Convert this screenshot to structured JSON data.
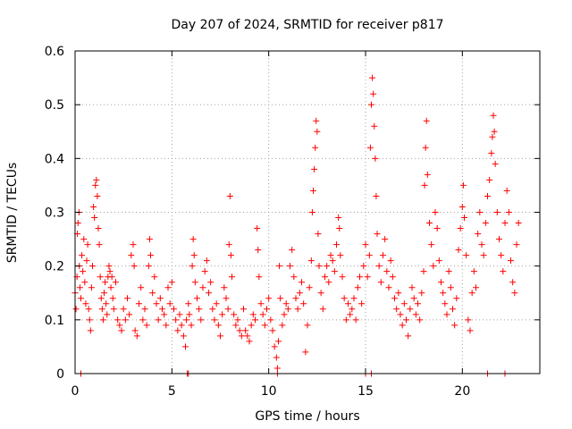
{
  "chart_data": {
    "type": "scatter",
    "title": "Day 207 of 2024, SRMTID for receiver p817",
    "xlabel": "GPS time / hours",
    "ylabel": "SRMTID / TECUs",
    "xlim": [
      0,
      24
    ],
    "ylim": [
      0,
      0.6
    ],
    "x_ticks": [
      0,
      5,
      10,
      15,
      20
    ],
    "x_tick_labels": [
      "0",
      "5",
      "10",
      "15",
      "20"
    ],
    "y_ticks": [
      0,
      0.1,
      0.2,
      0.3,
      0.4,
      0.5,
      0.6
    ],
    "y_tick_labels": [
      "0",
      "0.1",
      "0.2",
      "0.3",
      "0.4",
      "0.5",
      "0.6"
    ],
    "grid": true,
    "marker": "plus",
    "series": [
      {
        "name": "SRMTID",
        "color": "#ff0000",
        "points": [
          [
            0.0,
            0.15
          ],
          [
            0.05,
            0.12
          ],
          [
            0.1,
            0.18
          ],
          [
            0.12,
            0.26
          ],
          [
            0.15,
            0.28
          ],
          [
            0.2,
            0.3
          ],
          [
            0.22,
            0.2
          ],
          [
            0.25,
            0.16
          ],
          [
            0.3,
            0.14
          ],
          [
            0.35,
            0.22
          ],
          [
            0.4,
            0.19
          ],
          [
            0.45,
            0.25
          ],
          [
            0.5,
            0.17
          ],
          [
            0.55,
            0.13
          ],
          [
            0.6,
            0.21
          ],
          [
            0.65,
            0.24
          ],
          [
            0.7,
            0.12
          ],
          [
            0.75,
            0.1
          ],
          [
            0.8,
            0.08
          ],
          [
            0.85,
            0.16
          ],
          [
            0.9,
            0.2
          ],
          [
            0.95,
            0.31
          ],
          [
            1.0,
            0.29
          ],
          [
            1.05,
            0.35
          ],
          [
            1.1,
            0.36
          ],
          [
            1.15,
            0.33
          ],
          [
            1.2,
            0.27
          ],
          [
            1.25,
            0.24
          ],
          [
            1.3,
            0.18
          ],
          [
            1.35,
            0.14
          ],
          [
            1.4,
            0.12
          ],
          [
            1.45,
            0.1
          ],
          [
            1.5,
            0.15
          ],
          [
            1.55,
            0.17
          ],
          [
            1.6,
            0.13
          ],
          [
            1.65,
            0.11
          ],
          [
            1.7,
            0.18
          ],
          [
            1.75,
            0.2
          ],
          [
            1.8,
            0.19
          ],
          [
            1.85,
            0.16
          ],
          [
            1.9,
            0.18
          ],
          [
            1.95,
            0.14
          ],
          [
            2.0,
            0.12
          ],
          [
            2.1,
            0.17
          ],
          [
            2.2,
            0.1
          ],
          [
            2.3,
            0.09
          ],
          [
            2.4,
            0.08
          ],
          [
            2.5,
            0.12
          ],
          [
            2.6,
            0.1
          ],
          [
            2.7,
            0.14
          ],
          [
            2.8,
            0.11
          ],
          [
            2.9,
            0.22
          ],
          [
            3.0,
            0.24
          ],
          [
            3.05,
            0.2
          ],
          [
            3.1,
            0.08
          ],
          [
            3.2,
            0.07
          ],
          [
            3.3,
            0.13
          ],
          [
            3.4,
            0.16
          ],
          [
            3.5,
            0.1
          ],
          [
            3.6,
            0.12
          ],
          [
            3.7,
            0.09
          ],
          [
            3.8,
            0.2
          ],
          [
            3.85,
            0.25
          ],
          [
            3.9,
            0.22
          ],
          [
            4.0,
            0.15
          ],
          [
            4.1,
            0.18
          ],
          [
            4.2,
            0.13
          ],
          [
            4.3,
            0.1
          ],
          [
            4.4,
            0.14
          ],
          [
            4.5,
            0.12
          ],
          [
            4.6,
            0.11
          ],
          [
            4.7,
            0.09
          ],
          [
            4.8,
            0.16
          ],
          [
            4.9,
            0.13
          ],
          [
            5.0,
            0.17
          ],
          [
            5.1,
            0.12
          ],
          [
            5.2,
            0.1
          ],
          [
            5.3,
            0.08
          ],
          [
            5.4,
            0.11
          ],
          [
            5.5,
            0.09
          ],
          [
            5.6,
            0.07
          ],
          [
            5.7,
            0.05
          ],
          [
            5.75,
            0.1
          ],
          [
            5.8,
            0.0
          ],
          [
            5.85,
            0.13
          ],
          [
            5.9,
            0.11
          ],
          [
            6.0,
            0.09
          ],
          [
            6.05,
            0.2
          ],
          [
            6.1,
            0.25
          ],
          [
            6.15,
            0.22
          ],
          [
            6.2,
            0.17
          ],
          [
            6.3,
            0.14
          ],
          [
            6.4,
            0.12
          ],
          [
            6.5,
            0.1
          ],
          [
            6.6,
            0.16
          ],
          [
            6.7,
            0.19
          ],
          [
            6.8,
            0.21
          ],
          [
            6.9,
            0.15
          ],
          [
            7.0,
            0.17
          ],
          [
            7.1,
            0.12
          ],
          [
            7.2,
            0.1
          ],
          [
            7.3,
            0.13
          ],
          [
            7.4,
            0.09
          ],
          [
            7.5,
            0.07
          ],
          [
            7.6,
            0.11
          ],
          [
            7.7,
            0.16
          ],
          [
            7.8,
            0.14
          ],
          [
            7.9,
            0.12
          ],
          [
            7.95,
            0.24
          ],
          [
            8.0,
            0.33
          ],
          [
            8.05,
            0.22
          ],
          [
            8.1,
            0.18
          ],
          [
            8.2,
            0.11
          ],
          [
            8.3,
            0.09
          ],
          [
            8.4,
            0.1
          ],
          [
            8.5,
            0.08
          ],
          [
            8.6,
            0.07
          ],
          [
            8.7,
            0.12
          ],
          [
            8.8,
            0.08
          ],
          [
            8.9,
            0.07
          ],
          [
            9.0,
            0.06
          ],
          [
            9.1,
            0.09
          ],
          [
            9.2,
            0.11
          ],
          [
            9.3,
            0.1
          ],
          [
            9.4,
            0.27
          ],
          [
            9.45,
            0.23
          ],
          [
            9.5,
            0.18
          ],
          [
            9.6,
            0.13
          ],
          [
            9.7,
            0.11
          ],
          [
            9.8,
            0.09
          ],
          [
            9.9,
            0.12
          ],
          [
            10.0,
            0.14
          ],
          [
            10.1,
            0.1
          ],
          [
            10.2,
            0.08
          ],
          [
            10.3,
            0.05
          ],
          [
            10.4,
            0.03
          ],
          [
            10.45,
            0.01
          ],
          [
            10.5,
            0.06
          ],
          [
            10.55,
            0.2
          ],
          [
            10.6,
            0.14
          ],
          [
            10.7,
            0.09
          ],
          [
            10.8,
            0.11
          ],
          [
            10.9,
            0.13
          ],
          [
            11.0,
            0.12
          ],
          [
            11.1,
            0.2
          ],
          [
            11.2,
            0.23
          ],
          [
            11.3,
            0.18
          ],
          [
            11.4,
            0.14
          ],
          [
            11.5,
            0.12
          ],
          [
            11.6,
            0.15
          ],
          [
            11.7,
            0.17
          ],
          [
            11.8,
            0.13
          ],
          [
            11.9,
            0.04
          ],
          [
            12.0,
            0.09
          ],
          [
            12.1,
            0.16
          ],
          [
            12.2,
            0.21
          ],
          [
            12.25,
            0.3
          ],
          [
            12.3,
            0.34
          ],
          [
            12.35,
            0.38
          ],
          [
            12.4,
            0.42
          ],
          [
            12.45,
            0.47
          ],
          [
            12.5,
            0.45
          ],
          [
            12.55,
            0.26
          ],
          [
            12.6,
            0.2
          ],
          [
            12.7,
            0.15
          ],
          [
            12.8,
            0.12
          ],
          [
            12.9,
            0.18
          ],
          [
            13.0,
            0.2
          ],
          [
            13.1,
            0.17
          ],
          [
            13.2,
            0.22
          ],
          [
            13.3,
            0.21
          ],
          [
            13.4,
            0.19
          ],
          [
            13.5,
            0.24
          ],
          [
            13.6,
            0.29
          ],
          [
            13.65,
            0.27
          ],
          [
            13.7,
            0.22
          ],
          [
            13.8,
            0.18
          ],
          [
            13.9,
            0.14
          ],
          [
            14.0,
            0.1
          ],
          [
            14.1,
            0.13
          ],
          [
            14.2,
            0.11
          ],
          [
            14.3,
            0.12
          ],
          [
            14.4,
            0.14
          ],
          [
            14.5,
            0.1
          ],
          [
            14.6,
            0.16
          ],
          [
            14.7,
            0.18
          ],
          [
            14.8,
            0.13
          ],
          [
            14.9,
            0.2
          ],
          [
            15.0,
            0.24
          ],
          [
            15.1,
            0.18
          ],
          [
            15.2,
            0.22
          ],
          [
            15.25,
            0.42
          ],
          [
            15.3,
            0.5
          ],
          [
            15.35,
            0.55
          ],
          [
            15.4,
            0.52
          ],
          [
            15.45,
            0.46
          ],
          [
            15.5,
            0.4
          ],
          [
            15.55,
            0.33
          ],
          [
            15.6,
            0.26
          ],
          [
            15.7,
            0.2
          ],
          [
            15.8,
            0.17
          ],
          [
            15.9,
            0.22
          ],
          [
            16.0,
            0.25
          ],
          [
            16.1,
            0.19
          ],
          [
            16.2,
            0.16
          ],
          [
            16.3,
            0.21
          ],
          [
            16.4,
            0.18
          ],
          [
            16.5,
            0.14
          ],
          [
            16.6,
            0.12
          ],
          [
            16.7,
            0.15
          ],
          [
            16.8,
            0.11
          ],
          [
            16.9,
            0.09
          ],
          [
            17.0,
            0.13
          ],
          [
            17.1,
            0.1
          ],
          [
            17.2,
            0.07
          ],
          [
            17.3,
            0.12
          ],
          [
            17.4,
            0.16
          ],
          [
            17.5,
            0.14
          ],
          [
            17.6,
            0.11
          ],
          [
            17.7,
            0.13
          ],
          [
            17.8,
            0.1
          ],
          [
            17.9,
            0.15
          ],
          [
            18.0,
            0.19
          ],
          [
            18.05,
            0.35
          ],
          [
            18.1,
            0.42
          ],
          [
            18.15,
            0.47
          ],
          [
            18.2,
            0.37
          ],
          [
            18.3,
            0.28
          ],
          [
            18.4,
            0.24
          ],
          [
            18.5,
            0.2
          ],
          [
            18.6,
            0.3
          ],
          [
            18.7,
            0.27
          ],
          [
            18.8,
            0.21
          ],
          [
            18.9,
            0.17
          ],
          [
            19.0,
            0.15
          ],
          [
            19.1,
            0.13
          ],
          [
            19.2,
            0.11
          ],
          [
            19.3,
            0.19
          ],
          [
            19.4,
            0.16
          ],
          [
            19.5,
            0.12
          ],
          [
            19.6,
            0.09
          ],
          [
            19.7,
            0.14
          ],
          [
            19.8,
            0.23
          ],
          [
            19.9,
            0.27
          ],
          [
            20.0,
            0.31
          ],
          [
            20.05,
            0.35
          ],
          [
            20.1,
            0.29
          ],
          [
            20.2,
            0.22
          ],
          [
            20.3,
            0.1
          ],
          [
            20.4,
            0.08
          ],
          [
            20.5,
            0.15
          ],
          [
            20.6,
            0.19
          ],
          [
            20.7,
            0.16
          ],
          [
            20.8,
            0.26
          ],
          [
            20.9,
            0.3
          ],
          [
            21.0,
            0.24
          ],
          [
            21.1,
            0.22
          ],
          [
            21.2,
            0.28
          ],
          [
            21.3,
            0.33
          ],
          [
            21.4,
            0.36
          ],
          [
            21.5,
            0.41
          ],
          [
            21.55,
            0.44
          ],
          [
            21.6,
            0.48
          ],
          [
            21.65,
            0.45
          ],
          [
            21.7,
            0.39
          ],
          [
            21.8,
            0.3
          ],
          [
            21.9,
            0.25
          ],
          [
            22.0,
            0.22
          ],
          [
            22.1,
            0.19
          ],
          [
            22.2,
            0.28
          ],
          [
            22.3,
            0.34
          ],
          [
            22.4,
            0.3
          ],
          [
            22.5,
            0.21
          ],
          [
            22.6,
            0.17
          ],
          [
            22.7,
            0.15
          ],
          [
            22.8,
            0.24
          ],
          [
            22.9,
            0.28
          ],
          [
            0.3,
            0.0
          ],
          [
            5.85,
            0.0
          ],
          [
            15.0,
            0.0
          ],
          [
            15.3,
            0.0
          ],
          [
            21.3,
            0.0
          ],
          [
            22.2,
            0.0
          ],
          [
            10.45,
            0.0
          ]
        ]
      }
    ]
  }
}
